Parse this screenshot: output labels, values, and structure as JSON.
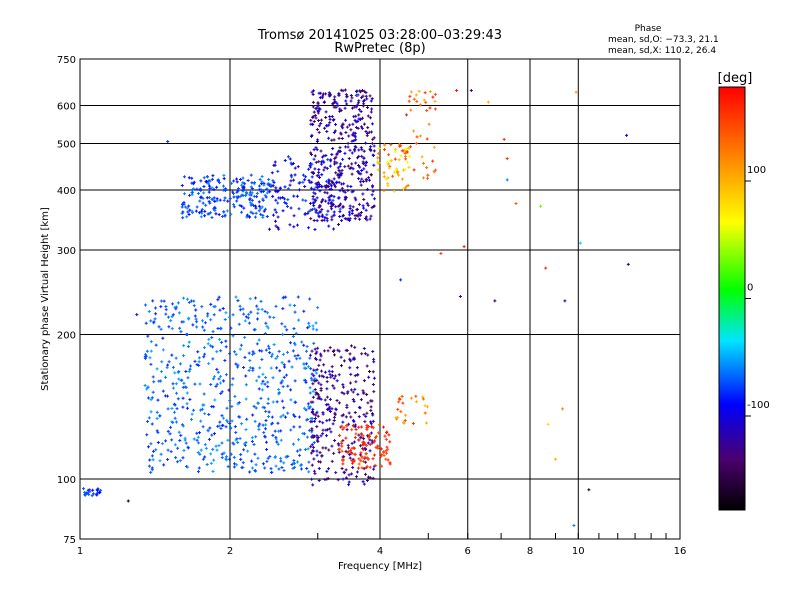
{
  "chart_data": {
    "type": "scatter",
    "title": "Tromsø 20141025 03:28:00–03:29:43",
    "subtitle": "RwPretec (8p)",
    "xlabel": "Frequency [MHz]",
    "ylabel": "Stationary phase Virtual Height [km]",
    "x_scale": "log",
    "y_scale": "log",
    "xlim": [
      1,
      16
    ],
    "ylim": [
      75,
      750
    ],
    "x_ticks": [
      1,
      2,
      4,
      6,
      8,
      10,
      16
    ],
    "y_ticks": [
      75,
      100,
      200,
      300,
      400,
      500,
      600,
      750
    ],
    "grid": true,
    "phase_stats": {
      "heading": "Phase",
      "o_line": "mean, sd,O: −73.3, 21.1",
      "x_line": "mean, sd,X: 110.2, 26.4"
    },
    "colorbar": {
      "label": "[deg]",
      "min": -180,
      "max": 180,
      "ticks": [
        100,
        0,
        -100
      ]
    },
    "clusters": [
      {
        "x": [
          1.0,
          1.1
        ],
        "y": [
          92,
          96
        ],
        "phase": [
          -95,
          -60
        ],
        "count": 25
      },
      {
        "x": [
          1.6,
          2.4
        ],
        "y": [
          350,
          430
        ],
        "phase": [
          -95,
          -55
        ],
        "count": 220
      },
      {
        "x": [
          2.4,
          3.4
        ],
        "y": [
          330,
          470
        ],
        "phase": [
          -110,
          -70
        ],
        "count": 150
      },
      {
        "x": [
          2.9,
          3.9
        ],
        "y": [
          345,
          650
        ],
        "phase": [
          -150,
          -90
        ],
        "count": 420
      },
      {
        "x": [
          3.9,
          4.6
        ],
        "y": [
          390,
          500
        ],
        "phase": [
          60,
          160
        ],
        "count": 60
      },
      {
        "x": [
          4.5,
          5.2
        ],
        "y": [
          420,
          650
        ],
        "phase": [
          100,
          170
        ],
        "count": 40
      },
      {
        "x": [
          1.35,
          3.0
        ],
        "y": [
          103,
          240
        ],
        "phase": [
          -85,
          -50
        ],
        "count": 650
      },
      {
        "x": [
          2.9,
          3.9
        ],
        "y": [
          97,
          190
        ],
        "phase": [
          -150,
          -100
        ],
        "count": 300
      },
      {
        "x": [
          3.3,
          4.2
        ],
        "y": [
          105,
          130
        ],
        "phase": [
          140,
          175
        ],
        "count": 110
      },
      {
        "x": [
          4.3,
          5.0
        ],
        "y": [
          130,
          150
        ],
        "phase": [
          90,
          160
        ],
        "count": 25
      }
    ],
    "scatter_points": {
      "x": [
        1.3,
        1.5,
        1.25,
        5.7,
        6.1,
        6.6,
        7.1,
        7.2,
        7.5,
        8.4,
        8.6,
        9.4,
        9.8,
        9.9,
        10.1,
        10.5,
        12.5,
        12.6,
        5.9,
        6.8,
        4.4,
        5.3,
        4.5,
        7.2,
        8.7,
        9.3,
        9.0,
        5.8,
        3.6
      ],
      "y": [
        220,
        505,
        90,
        645,
        645,
        610,
        510,
        420,
        375,
        370,
        275,
        235,
        80,
        640,
        310,
        95,
        520,
        280,
        305,
        235,
        260,
        295,
        470,
        465,
        130,
        140,
        110,
        240,
        630
      ],
      "phase": [
        -120,
        -80,
        -170,
        170,
        -140,
        100,
        160,
        -60,
        140,
        30,
        160,
        -120,
        -60,
        110,
        -40,
        -160,
        -100,
        -150,
        170,
        -150,
        -80,
        150,
        120,
        160,
        80,
        120,
        100,
        -130,
        -60
      ]
    }
  }
}
